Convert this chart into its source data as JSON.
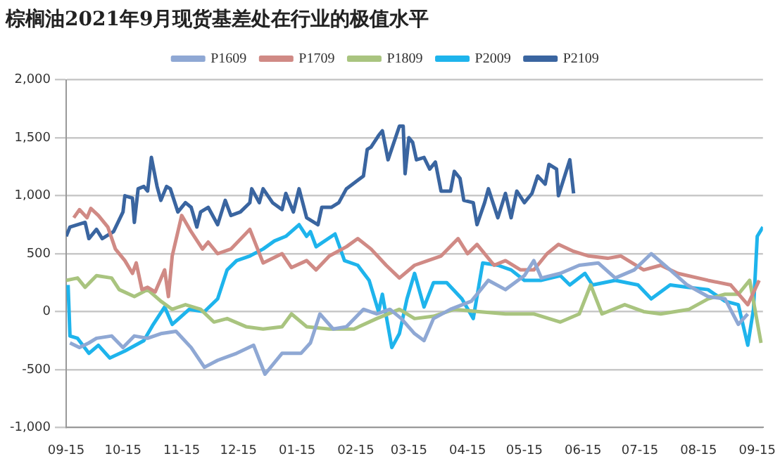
{
  "chart_data": {
    "type": "line",
    "title": "棕榈油2021年9月现货基差处在行业的极值水平",
    "xlim": [
      "2020-09-15",
      "2021-09-18"
    ],
    "xticks": [
      {
        "value": "2020-09-15",
        "label": "09-15"
      },
      {
        "value": "2020-10-15",
        "label": "10-15"
      },
      {
        "value": "2020-11-15",
        "label": "11-15"
      },
      {
        "value": "2020-12-15",
        "label": "12-15"
      },
      {
        "value": "2021-01-15",
        "label": "01-15"
      },
      {
        "value": "2021-02-15",
        "label": "02-15"
      },
      {
        "value": "2021-03-15",
        "label": "03-15"
      },
      {
        "value": "2021-04-15",
        "label": "04-15"
      },
      {
        "value": "2021-05-15",
        "label": "05-15"
      },
      {
        "value": "2021-06-15",
        "label": "06-15"
      },
      {
        "value": "2021-07-15",
        "label": "07-15"
      },
      {
        "value": "2021-08-15",
        "label": "08-15"
      },
      {
        "value": "2021-09-15",
        "label": "09-15"
      }
    ],
    "ylim": [
      -1000,
      2000
    ],
    "yticks": [
      {
        "value": -1000,
        "label": "-1,000"
      },
      {
        "value": -500,
        "label": "-500"
      },
      {
        "value": 0,
        "label": "0"
      },
      {
        "value": 500,
        "label": "500"
      },
      {
        "value": 1000,
        "label": "1,000"
      },
      {
        "value": 1500,
        "label": "1,500"
      },
      {
        "value": 2000,
        "label": "2,000"
      }
    ],
    "grid": "y",
    "legend": "top",
    "marker": "none",
    "line_style": "solid",
    "series": [
      {
        "name": "P1609",
        "color": "#8fa8d4",
        "x": [
          "2020-09-17",
          "2020-09-22",
          "2020-09-27",
          "2020-10-01",
          "2020-10-09",
          "2020-10-15",
          "2020-10-21",
          "2020-10-28",
          "2020-11-04",
          "2020-11-12",
          "2020-11-20",
          "2020-11-27",
          "2020-12-04",
          "2020-12-14",
          "2020-12-23",
          "2020-12-29",
          "2021-01-07",
          "2021-01-17",
          "2021-01-22",
          "2021-01-27",
          "2021-02-03",
          "2021-02-10",
          "2021-02-19",
          "2021-02-26",
          "2021-03-05",
          "2021-03-11",
          "2021-03-18",
          "2021-03-23",
          "2021-03-28",
          "2021-04-06",
          "2021-04-17",
          "2021-04-26",
          "2021-05-05",
          "2021-05-15",
          "2021-05-20",
          "2021-05-24",
          "2021-06-03",
          "2021-06-13",
          "2021-06-23",
          "2021-07-02",
          "2021-07-12",
          "2021-07-21",
          "2021-07-31",
          "2021-08-09",
          "2021-08-20",
          "2021-08-29",
          "2021-09-05",
          "2021-09-10"
        ],
        "values": [
          -270,
          -310,
          -270,
          -230,
          -210,
          -310,
          -210,
          -230,
          -190,
          -170,
          -310,
          -480,
          -420,
          -360,
          -290,
          -540,
          -360,
          -360,
          -270,
          -20,
          -150,
          -130,
          20,
          -20,
          20,
          -60,
          -190,
          -250,
          -60,
          20,
          90,
          270,
          190,
          310,
          440,
          290,
          330,
          400,
          420,
          290,
          360,
          500,
          360,
          230,
          130,
          110,
          -110,
          -20
        ]
      },
      {
        "name": "P1709",
        "color": "#d08a85",
        "x": [
          "2020-09-19",
          "2020-09-22",
          "2020-09-26",
          "2020-09-28",
          "2020-10-02",
          "2020-10-07",
          "2020-10-11",
          "2020-10-16",
          "2020-10-20",
          "2020-10-22",
          "2020-10-25",
          "2020-10-28",
          "2020-11-01",
          "2020-11-06",
          "2020-11-08",
          "2020-11-10",
          "2020-11-15",
          "2020-11-20",
          "2020-11-26",
          "2020-11-29",
          "2020-12-04",
          "2020-12-11",
          "2020-12-21",
          "2020-12-28",
          "2021-01-07",
          "2021-01-12",
          "2021-01-20",
          "2021-01-25",
          "2021-02-01",
          "2021-02-10",
          "2021-02-16",
          "2021-02-23",
          "2021-03-03",
          "2021-03-10",
          "2021-03-18",
          "2021-03-25",
          "2021-04-01",
          "2021-04-10",
          "2021-04-15",
          "2021-04-20",
          "2021-04-29",
          "2021-05-05",
          "2021-05-13",
          "2021-05-20",
          "2021-05-27",
          "2021-06-02",
          "2021-06-10",
          "2021-06-18",
          "2021-06-28",
          "2021-07-05",
          "2021-07-17",
          "2021-07-26",
          "2021-08-04",
          "2021-08-20",
          "2021-09-01",
          "2021-09-10",
          "2021-09-16"
        ],
        "values": [
          810,
          880,
          810,
          890,
          830,
          730,
          540,
          440,
          330,
          420,
          190,
          210,
          170,
          360,
          130,
          480,
          830,
          690,
          540,
          600,
          500,
          540,
          710,
          420,
          500,
          380,
          440,
          360,
          480,
          560,
          630,
          540,
          400,
          290,
          400,
          440,
          480,
          630,
          500,
          580,
          400,
          440,
          360,
          360,
          500,
          580,
          520,
          480,
          460,
          480,
          360,
          400,
          330,
          270,
          230,
          60,
          270
        ]
      },
      {
        "name": "P1809",
        "color": "#a9c47f",
        "x": [
          "2020-09-15",
          "2020-09-21",
          "2020-09-25",
          "2020-10-01",
          "2020-10-09",
          "2020-10-13",
          "2020-10-21",
          "2020-10-28",
          "2020-11-04",
          "2020-11-10",
          "2020-11-17",
          "2020-11-25",
          "2020-12-02",
          "2020-12-09",
          "2020-12-19",
          "2020-12-28",
          "2021-01-07",
          "2021-01-12",
          "2021-01-20",
          "2021-02-01",
          "2021-02-14",
          "2021-02-26",
          "2021-03-10",
          "2021-03-18",
          "2021-03-28",
          "2021-04-08",
          "2021-04-21",
          "2021-05-05",
          "2021-05-20",
          "2021-06-03",
          "2021-06-13",
          "2021-06-19",
          "2021-06-25",
          "2021-07-07",
          "2021-07-17",
          "2021-07-26",
          "2021-08-10",
          "2021-08-20",
          "2021-08-29",
          "2021-09-05",
          "2021-09-11",
          "2021-09-17"
        ],
        "values": [
          270,
          290,
          210,
          310,
          290,
          190,
          130,
          190,
          90,
          20,
          60,
          20,
          -90,
          -60,
          -130,
          -150,
          -130,
          -20,
          -130,
          -150,
          -150,
          -60,
          20,
          -60,
          -40,
          20,
          0,
          -20,
          -20,
          -90,
          -20,
          230,
          -20,
          60,
          0,
          -20,
          20,
          110,
          150,
          150,
          270,
          -270
        ]
      },
      {
        "name": "P2009",
        "color": "#1eb4ec",
        "x": [
          "2020-09-16",
          "2020-09-17",
          "2020-09-21",
          "2020-09-27",
          "2020-10-02",
          "2020-10-08",
          "2020-10-16",
          "2020-10-26",
          "2020-10-31",
          "2020-11-06",
          "2020-11-10",
          "2020-11-19",
          "2020-11-27",
          "2020-12-04",
          "2020-12-09",
          "2020-12-14",
          "2020-12-21",
          "2020-12-28",
          "2021-01-03",
          "2021-01-09",
          "2021-01-16",
          "2021-01-20",
          "2021-01-22",
          "2021-01-25",
          "2021-02-04",
          "2021-02-09",
          "2021-02-16",
          "2021-02-22",
          "2021-02-27",
          "2021-03-01",
          "2021-03-06",
          "2021-03-10",
          "2021-03-14",
          "2021-03-18",
          "2021-03-23",
          "2021-03-28",
          "2021-04-04",
          "2021-04-12",
          "2021-04-18",
          "2021-04-23",
          "2021-05-01",
          "2021-05-08",
          "2021-05-15",
          "2021-05-24",
          "2021-06-03",
          "2021-06-08",
          "2021-06-16",
          "2021-06-20",
          "2021-07-02",
          "2021-07-14",
          "2021-07-21",
          "2021-07-31",
          "2021-08-09",
          "2021-08-20",
          "2021-08-29",
          "2021-09-05",
          "2021-09-10",
          "2021-09-13",
          "2021-09-15",
          "2021-09-18"
        ],
        "values": [
          230,
          -210,
          -230,
          -360,
          -290,
          -400,
          -340,
          -250,
          -110,
          40,
          -110,
          20,
          0,
          110,
          360,
          440,
          480,
          540,
          610,
          650,
          750,
          650,
          690,
          560,
          670,
          440,
          400,
          270,
          0,
          150,
          -310,
          -190,
          110,
          330,
          40,
          250,
          250,
          110,
          -60,
          420,
          400,
          360,
          270,
          270,
          310,
          230,
          330,
          230,
          270,
          230,
          110,
          230,
          210,
          190,
          90,
          60,
          -290,
          20,
          650,
          730
        ]
      },
      {
        "name": "P2109",
        "color": "#3a65a0",
        "x": [
          "2020-09-15",
          "2020-09-17",
          "2020-09-25",
          "2020-09-27",
          "2020-10-01",
          "2020-10-04",
          "2020-10-10",
          "2020-10-15",
          "2020-10-16",
          "2020-10-20",
          "2020-10-21",
          "2020-10-23",
          "2020-10-26",
          "2020-10-28",
          "2020-10-30",
          "2020-11-02",
          "2020-11-04",
          "2020-11-07",
          "2020-11-09",
          "2020-11-13",
          "2020-11-17",
          "2020-11-20",
          "2020-11-23",
          "2020-11-25",
          "2020-11-29",
          "2020-12-04",
          "2020-12-08",
          "2020-12-11",
          "2020-12-16",
          "2020-12-21",
          "2020-12-22",
          "2020-12-26",
          "2020-12-28",
          "2021-01-02",
          "2021-01-07",
          "2021-01-09",
          "2021-01-13",
          "2021-01-16",
          "2021-01-20",
          "2021-01-26",
          "2021-01-28",
          "2021-02-02",
          "2021-02-06",
          "2021-02-10",
          "2021-02-19",
          "2021-02-21",
          "2021-02-23",
          "2021-02-27",
          "2021-03-01",
          "2021-03-04",
          "2021-03-10",
          "2021-03-12",
          "2021-03-13",
          "2021-03-15",
          "2021-03-17",
          "2021-03-19",
          "2021-03-23",
          "2021-03-26",
          "2021-03-29",
          "2021-04-01",
          "2021-04-06",
          "2021-04-08",
          "2021-04-11",
          "2021-04-13",
          "2021-04-18",
          "2021-04-20",
          "2021-04-24",
          "2021-04-26",
          "2021-05-01",
          "2021-05-05",
          "2021-05-08",
          "2021-05-11",
          "2021-05-15",
          "2021-05-19",
          "2021-05-22",
          "2021-05-26",
          "2021-05-28",
          "2021-06-01",
          "2021-06-02",
          "2021-06-08",
          "2021-06-10"
        ],
        "values": [
          650,
          730,
          770,
          630,
          710,
          630,
          690,
          860,
          1000,
          980,
          770,
          1060,
          1080,
          1040,
          1330,
          1080,
          960,
          1080,
          1060,
          860,
          940,
          900,
          730,
          860,
          900,
          750,
          960,
          830,
          860,
          940,
          1060,
          940,
          1060,
          940,
          880,
          1020,
          860,
          1060,
          810,
          750,
          900,
          900,
          940,
          1060,
          1170,
          1400,
          1420,
          1520,
          1560,
          1310,
          1600,
          1600,
          1190,
          1500,
          1460,
          1310,
          1330,
          1230,
          1290,
          1040,
          1040,
          1210,
          1150,
          960,
          940,
          750,
          940,
          1060,
          810,
          1020,
          810,
          1040,
          940,
          1020,
          1170,
          1100,
          1270,
          1230,
          1000,
          1310,
          1020
        ]
      }
    ]
  }
}
